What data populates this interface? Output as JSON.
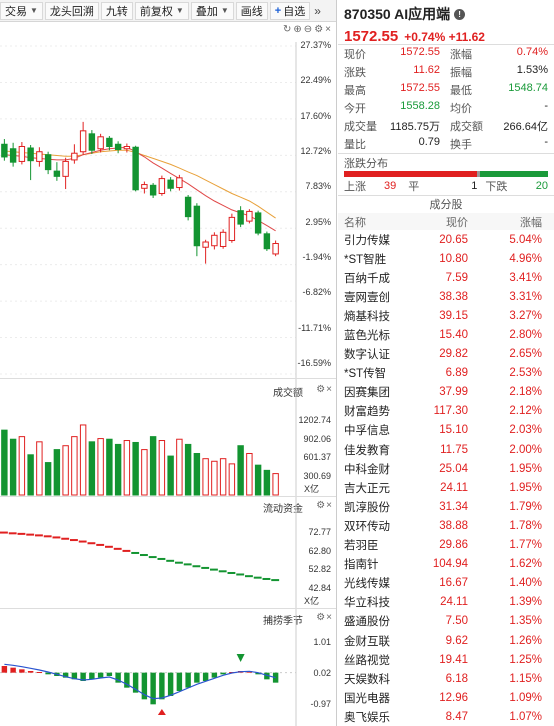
{
  "toolbar": {
    "items": [
      "交易",
      "龙头回溯",
      "九转",
      "前复权",
      "叠加",
      "画线"
    ],
    "add_label": "自选",
    "more": "»"
  },
  "price_axis": [
    "27.37%",
    "22.49%",
    "17.60%",
    "12.72%",
    "7.83%",
    "2.95%",
    "-1.94%",
    "-6.82%",
    "-11.71%",
    "-16.59%"
  ],
  "volume_panel": {
    "title": "成交额",
    "axis": [
      "1202.74",
      "902.06",
      "601.37",
      "300.69"
    ],
    "unit": "X亿"
  },
  "flow_panel": {
    "title": "流动资金",
    "axis": [
      "72.77",
      "62.80",
      "52.82",
      "42.84"
    ],
    "unit": "X亿"
  },
  "macd_panel": {
    "title": "捕捞季节",
    "axis": [
      "1.01",
      "0.02",
      "-0.97"
    ]
  },
  "stock": {
    "code_name": "870350 AI应用端",
    "price": "1572.55",
    "change": "+0.74% +11.62"
  },
  "quote": [
    [
      {
        "label": "现价",
        "value": "1572.55",
        "color": "red"
      },
      {
        "label": "涨幅",
        "value": "0.74%",
        "color": "red"
      }
    ],
    [
      {
        "label": "涨跌",
        "value": "11.62",
        "color": "red"
      },
      {
        "label": "振幅",
        "value": "1.53%",
        "color": "gray"
      }
    ],
    [
      {
        "label": "最高",
        "value": "1572.55",
        "color": "red"
      },
      {
        "label": "最低",
        "value": "1548.74",
        "color": "green"
      }
    ],
    [
      {
        "label": "今开",
        "value": "1558.28",
        "color": "green"
      },
      {
        "label": "均价",
        "value": "-",
        "color": "gray"
      }
    ],
    [
      {
        "label": "成交量",
        "value": "1185.75万",
        "color": "gray"
      },
      {
        "label": "成交额",
        "value": "266.64亿",
        "color": "gray"
      }
    ],
    [
      {
        "label": "量比",
        "value": "0.79",
        "color": "gray"
      },
      {
        "label": "换手",
        "value": "-",
        "color": "gray"
      }
    ]
  ],
  "distribution": {
    "title": "涨跌分布",
    "up_label": "上涨",
    "up": "39",
    "flat_label": "平",
    "flat": "1",
    "down_label": "下跌",
    "down": "20"
  },
  "components": {
    "title": "成分股",
    "headers": [
      "名称",
      "现价",
      "涨幅"
    ],
    "rows": [
      [
        "引力传媒",
        "20.65",
        "5.04%"
      ],
      [
        "*ST智胜",
        "10.80",
        "4.96%"
      ],
      [
        "百纳千成",
        "7.59",
        "3.41%"
      ],
      [
        "壹网壹创",
        "38.38",
        "3.31%"
      ],
      [
        "熵基科技",
        "39.15",
        "3.27%"
      ],
      [
        "蓝色光标",
        "15.40",
        "2.80%"
      ],
      [
        "数字认证",
        "29.82",
        "2.65%"
      ],
      [
        "*ST传智",
        "6.89",
        "2.53%"
      ],
      [
        "因赛集团",
        "37.99",
        "2.18%"
      ],
      [
        "财富趋势",
        "117.30",
        "2.12%"
      ],
      [
        "中孚信息",
        "15.10",
        "2.03%"
      ],
      [
        "佳发教育",
        "11.75",
        "2.00%"
      ],
      [
        "中科金财",
        "25.04",
        "1.95%"
      ],
      [
        "吉大正元",
        "24.11",
        "1.95%"
      ],
      [
        "凯淳股份",
        "31.34",
        "1.79%"
      ],
      [
        "双环传动",
        "38.88",
        "1.78%"
      ],
      [
        "若羽臣",
        "29.86",
        "1.77%"
      ],
      [
        "指南针",
        "104.94",
        "1.62%"
      ],
      [
        "光线传媒",
        "16.67",
        "1.40%"
      ],
      [
        "华立科技",
        "24.11",
        "1.39%"
      ],
      [
        "盛通股份",
        "7.50",
        "1.35%"
      ],
      [
        "金财互联",
        "9.62",
        "1.26%"
      ],
      [
        "丝路视觉",
        "19.41",
        "1.25%"
      ],
      [
        "天娱数科",
        "6.18",
        "1.15%"
      ],
      [
        "国光电器",
        "12.96",
        "1.09%"
      ],
      [
        "奥飞娱乐",
        "8.47",
        "1.07%"
      ]
    ]
  },
  "chart_data": {
    "type": "candlestick",
    "y_unit": "%",
    "ylim": [
      -16.59,
      27.37
    ],
    "candles": [
      {
        "o": 14.2,
        "c": 12.5,
        "h": 14.9,
        "l": 12.0
      },
      {
        "o": 13.6,
        "c": 11.8,
        "h": 14.4,
        "l": 11.2
      },
      {
        "o": 11.9,
        "c": 13.9,
        "h": 14.5,
        "l": 11.5
      },
      {
        "o": 13.7,
        "c": 12.0,
        "h": 14.1,
        "l": 9.4
      },
      {
        "o": 11.9,
        "c": 13.2,
        "h": 13.8,
        "l": 11.2
      },
      {
        "o": 12.8,
        "c": 10.8,
        "h": 13.2,
        "l": 10.2
      },
      {
        "o": 10.6,
        "c": 9.9,
        "h": 11.8,
        "l": 9.3
      },
      {
        "o": 9.9,
        "c": 11.9,
        "h": 12.4,
        "l": 8.2
      },
      {
        "o": 12.1,
        "c": 13.0,
        "h": 14.2,
        "l": 11.6
      },
      {
        "o": 13.2,
        "c": 16.0,
        "h": 17.2,
        "l": 12.8
      },
      {
        "o": 15.6,
        "c": 13.4,
        "h": 16.1,
        "l": 12.9
      },
      {
        "o": 13.6,
        "c": 15.2,
        "h": 15.6,
        "l": 13.1
      },
      {
        "o": 15.0,
        "c": 13.9,
        "h": 15.3,
        "l": 13.4
      },
      {
        "o": 14.2,
        "c": 13.5,
        "h": 14.6,
        "l": 13.0
      },
      {
        "o": 13.6,
        "c": 13.9,
        "h": 14.3,
        "l": 13.1
      },
      {
        "o": 13.8,
        "c": 8.1,
        "h": 14.0,
        "l": 7.9
      },
      {
        "o": 8.3,
        "c": 8.8,
        "h": 9.2,
        "l": 7.6
      },
      {
        "o": 8.7,
        "c": 7.4,
        "h": 9.0,
        "l": 7.0
      },
      {
        "o": 7.6,
        "c": 9.6,
        "h": 10.0,
        "l": 7.3
      },
      {
        "o": 9.4,
        "c": 8.3,
        "h": 9.8,
        "l": 7.9
      },
      {
        "o": 8.4,
        "c": 9.7,
        "h": 10.1,
        "l": 8.0
      },
      {
        "o": 7.1,
        "c": 4.5,
        "h": 7.4,
        "l": 4.0
      },
      {
        "o": 5.9,
        "c": 0.6,
        "h": 6.3,
        "l": -0.8
      },
      {
        "o": 0.4,
        "c": 1.1,
        "h": 1.4,
        "l": -1.8
      },
      {
        "o": 0.6,
        "c": 2.0,
        "h": 2.4,
        "l": 0.1
      },
      {
        "o": 0.5,
        "c": 2.4,
        "h": 2.8,
        "l": 0.2
      },
      {
        "o": 1.3,
        "c": 4.4,
        "h": 4.9,
        "l": 1.0
      },
      {
        "o": 5.3,
        "c": 3.5,
        "h": 5.9,
        "l": 3.1
      },
      {
        "o": 3.9,
        "c": 5.2,
        "h": 5.5,
        "l": 3.6
      },
      {
        "o": 5.0,
        "c": 2.3,
        "h": 5.3,
        "l": 2.0
      },
      {
        "o": 2.2,
        "c": 0.2,
        "h": 2.5,
        "l": -0.1
      },
      {
        "o": -0.5,
        "c": 0.9,
        "h": 1.3,
        "l": -0.8
      }
    ],
    "ma_short": [
      12.8,
      12.7,
      12.6,
      12.4,
      12.3,
      12.2,
      12.1,
      12.1,
      12.3,
      12.8,
      13.1,
      13.4,
      13.6,
      13.7,
      13.8,
      13.2,
      12.5,
      11.7,
      11.0,
      10.3,
      9.6,
      8.9,
      8.1,
      7.3,
      6.6,
      6.0,
      5.4,
      5.0,
      4.6,
      4.0,
      3.3,
      2.6
    ],
    "ma_long": [
      13.3,
      13.2,
      13.1,
      13.0,
      12.9,
      12.8,
      12.7,
      12.6,
      12.6,
      12.8,
      13.0,
      13.2,
      13.3,
      13.4,
      13.4,
      13.1,
      12.7,
      12.3,
      11.9,
      11.5,
      11.0,
      10.5,
      10.0,
      9.4,
      8.8,
      8.2,
      7.6,
      7.1,
      6.6,
      5.9,
      5.1,
      4.3
    ],
    "volume": [
      1000,
      860,
      900,
      620,
      820,
      500,
      700,
      760,
      900,
      1080,
      820,
      870,
      860,
      780,
      840,
      810,
      700,
      900,
      840,
      600,
      860,
      780,
      640,
      560,
      520,
      560,
      480,
      760,
      640,
      460,
      380,
      330
    ],
    "flow": [
      73.0,
      72.6,
      72.3,
      71.9,
      71.5,
      71.0,
      70.4,
      69.7,
      69.0,
      68.2,
      67.3,
      66.4,
      65.4,
      64.3,
      63.2,
      62.1,
      61.0,
      59.9,
      58.9,
      57.9,
      56.9,
      56.0,
      55.0,
      54.1,
      53.2,
      52.3,
      51.4,
      50.6,
      49.7,
      48.9,
      48.2,
      47.6
    ],
    "macd_hist": [
      0.2,
      0.15,
      0.1,
      0.05,
      0.02,
      -0.05,
      -0.1,
      -0.15,
      -0.2,
      -0.25,
      -0.2,
      -0.15,
      -0.1,
      -0.3,
      -0.45,
      -0.6,
      -0.8,
      -0.95,
      -0.8,
      -0.7,
      -0.55,
      -0.45,
      -0.3,
      -0.25,
      -0.15,
      -0.05,
      0.02,
      0.05,
      0.05,
      -0.05,
      -0.2,
      -0.3
    ],
    "macd_line": [
      0.25,
      0.22,
      0.18,
      0.13,
      0.08,
      0.02,
      -0.05,
      -0.12,
      -0.18,
      -0.22,
      -0.2,
      -0.16,
      -0.13,
      -0.22,
      -0.35,
      -0.5,
      -0.66,
      -0.78,
      -0.76,
      -0.68,
      -0.57,
      -0.46,
      -0.35,
      -0.26,
      -0.17,
      -0.08,
      -0.01,
      0.03,
      0.04,
      0.0,
      -0.08,
      -0.15
    ]
  }
}
